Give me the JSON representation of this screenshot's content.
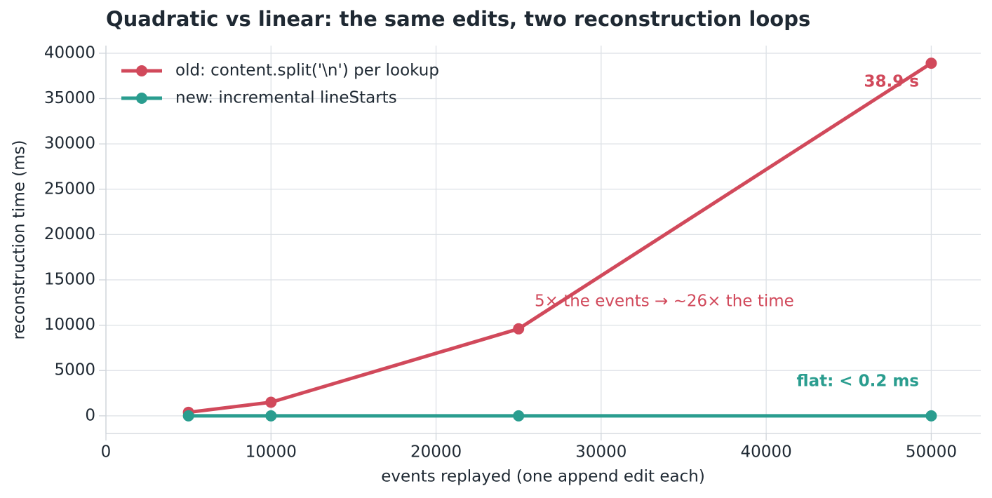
{
  "chart_data": {
    "type": "line",
    "title": "Quadratic vs linear: the same edits, two reconstruction loops",
    "x_label": "events replayed (one append edit each)",
    "y_label": "reconstruction time (ms)",
    "x": [
      5000,
      10000,
      25000,
      50000
    ],
    "series": [
      {
        "name": "old: content.split('\\n') per lookup",
        "color": "#d1495b",
        "values": [
          390,
          1500,
          9600,
          38900
        ]
      },
      {
        "name": "new: incremental lineStarts",
        "color": "#2a9d8f",
        "values": [
          0.1,
          0.1,
          0.1,
          0.1
        ]
      }
    ],
    "annotations": [
      {
        "text": "38.9 s",
        "color": "#d1495b"
      },
      {
        "text": "5× the events → ~26× the time",
        "color": "#d1495b"
      },
      {
        "text": "flat: < 0.2 ms",
        "color": "#2a9d8f"
      }
    ],
    "xlim": [
      0,
      53000
    ],
    "xticks": [
      0,
      10000,
      20000,
      30000,
      40000,
      50000
    ],
    "ylim": [
      -1945,
      40845
    ],
    "yticks": [
      0,
      5000,
      10000,
      15000,
      20000,
      25000,
      30000,
      35000,
      40000
    ],
    "grid": true,
    "legend": "upper left"
  }
}
